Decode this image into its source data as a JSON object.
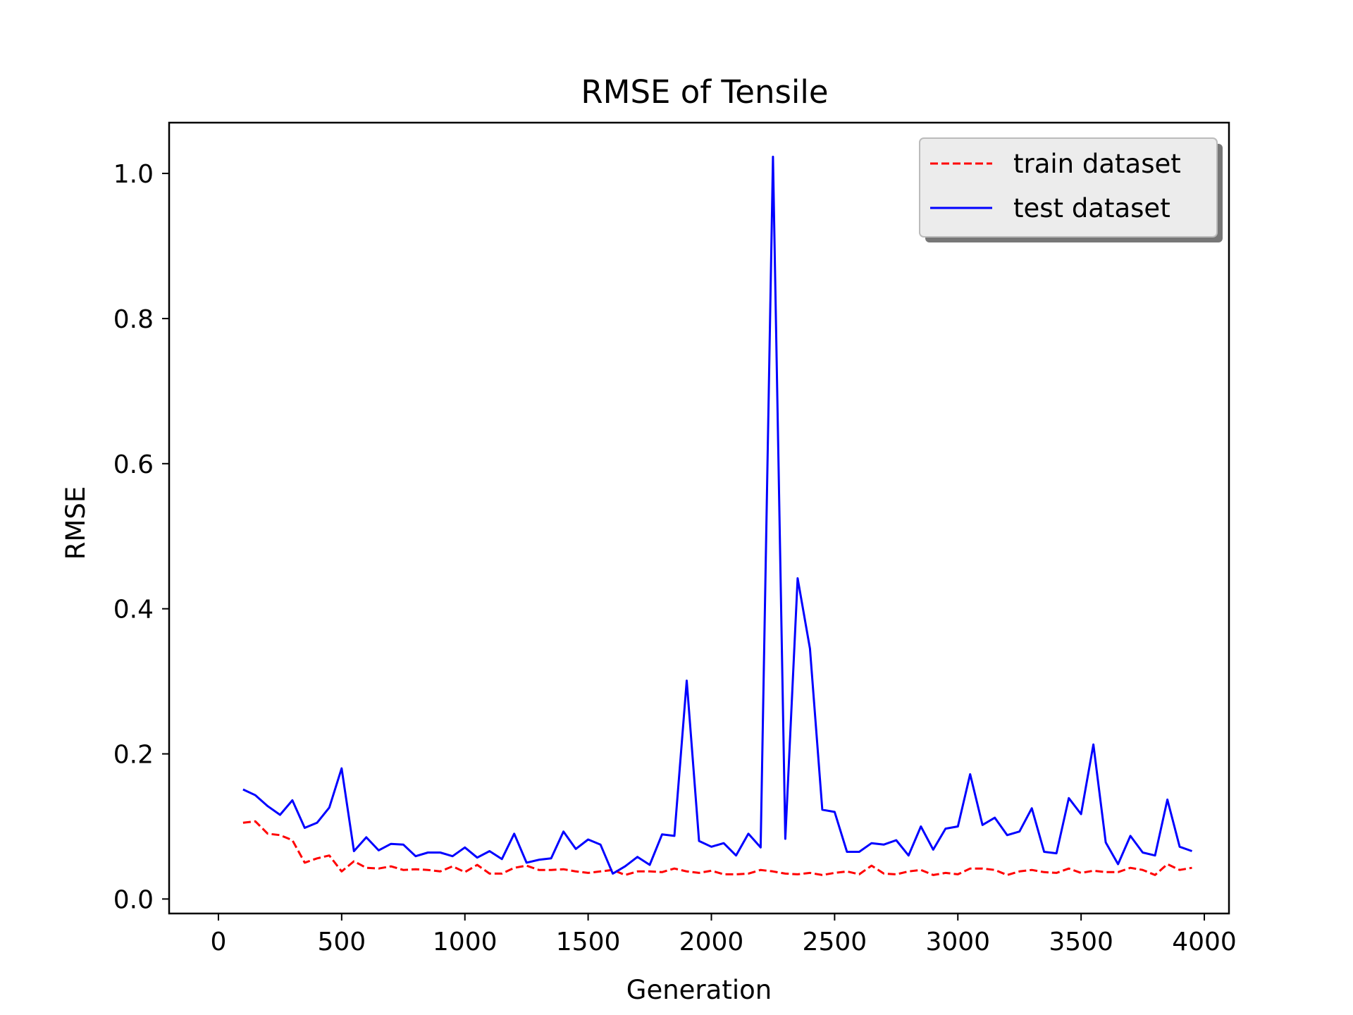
{
  "chart_data": {
    "type": "line",
    "title": "RMSE of Tensile",
    "xlabel": "Generation",
    "ylabel": "RMSE",
    "xlim": [
      -200,
      4100
    ],
    "ylim": [
      -0.02,
      1.07
    ],
    "xticks": [
      0,
      500,
      1000,
      1500,
      2000,
      2500,
      3000,
      3500,
      4000
    ],
    "xtick_labels": [
      "0",
      "500",
      "1000",
      "1500",
      "2000",
      "2500",
      "3000",
      "3500",
      "4000"
    ],
    "yticks": [
      0.0,
      0.2,
      0.4,
      0.6,
      0.8,
      1.0
    ],
    "ytick_labels": [
      "0.0",
      "0.2",
      "0.4",
      "0.6",
      "0.8",
      "1.0"
    ],
    "grid": false,
    "legend_position": "top-right",
    "x": [
      100,
      150,
      200,
      250,
      300,
      350,
      400,
      450,
      500,
      550,
      600,
      650,
      700,
      750,
      800,
      850,
      900,
      950,
      1000,
      1050,
      1100,
      1150,
      1200,
      1250,
      1300,
      1350,
      1400,
      1450,
      1500,
      1550,
      1600,
      1650,
      1700,
      1750,
      1800,
      1850,
      1900,
      1950,
      2000,
      2050,
      2100,
      2150,
      2200,
      2250,
      2300,
      2350,
      2400,
      2450,
      2500,
      2550,
      2600,
      2650,
      2700,
      2750,
      2800,
      2850,
      2900,
      2950,
      3000,
      3050,
      3100,
      3150,
      3200,
      3250,
      3300,
      3350,
      3400,
      3450,
      3500,
      3550,
      3600,
      3650,
      3700,
      3750,
      3800,
      3850,
      3900,
      3950
    ],
    "series": [
      {
        "name": "train dataset",
        "color": "#ff0000",
        "style": "dashed",
        "values": [
          0.105,
          0.107,
          0.09,
          0.088,
          0.081,
          0.05,
          0.056,
          0.06,
          0.038,
          0.052,
          0.043,
          0.042,
          0.045,
          0.04,
          0.041,
          0.04,
          0.038,
          0.045,
          0.037,
          0.047,
          0.035,
          0.035,
          0.043,
          0.046,
          0.04,
          0.04,
          0.041,
          0.038,
          0.036,
          0.038,
          0.04,
          0.033,
          0.038,
          0.038,
          0.037,
          0.042,
          0.038,
          0.036,
          0.039,
          0.034,
          0.034,
          0.035,
          0.04,
          0.038,
          0.035,
          0.034,
          0.036,
          0.033,
          0.036,
          0.038,
          0.034,
          0.046,
          0.035,
          0.034,
          0.038,
          0.04,
          0.033,
          0.036,
          0.034,
          0.042,
          0.042,
          0.04,
          0.033,
          0.038,
          0.04,
          0.037,
          0.036,
          0.042,
          0.036,
          0.039,
          0.037,
          0.037,
          0.043,
          0.04,
          0.033,
          0.048,
          0.04,
          0.043
        ]
      },
      {
        "name": "test dataset",
        "color": "#0000ff",
        "style": "solid",
        "values": [
          0.151,
          0.143,
          0.128,
          0.116,
          0.136,
          0.098,
          0.105,
          0.126,
          0.18,
          0.066,
          0.085,
          0.067,
          0.076,
          0.075,
          0.059,
          0.064,
          0.064,
          0.059,
          0.071,
          0.057,
          0.066,
          0.055,
          0.09,
          0.05,
          0.054,
          0.056,
          0.093,
          0.069,
          0.082,
          0.075,
          0.035,
          0.045,
          0.058,
          0.047,
          0.089,
          0.087,
          0.301,
          0.08,
          0.072,
          0.077,
          0.06,
          0.09,
          0.071,
          1.023,
          0.083,
          0.442,
          0.345,
          0.123,
          0.12,
          0.065,
          0.065,
          0.077,
          0.075,
          0.081,
          0.06,
          0.1,
          0.068,
          0.097,
          0.1,
          0.172,
          0.102,
          0.112,
          0.088,
          0.093,
          0.125,
          0.065,
          0.063,
          0.139,
          0.117,
          0.213,
          0.078,
          0.048,
          0.087,
          0.064,
          0.06,
          0.137,
          0.072,
          0.066
        ]
      }
    ]
  }
}
